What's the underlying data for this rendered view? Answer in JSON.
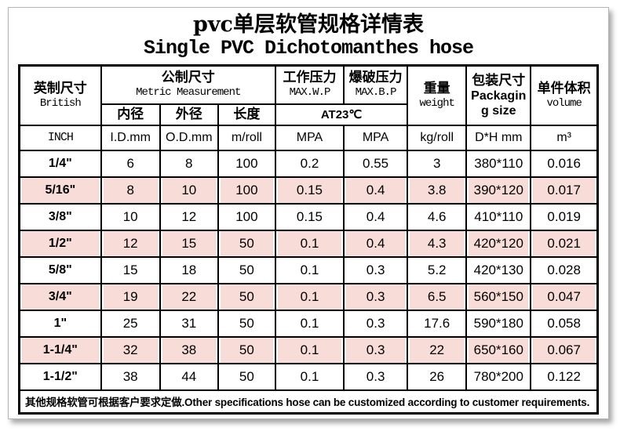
{
  "title": {
    "zh": "pvc单层软管规格详情表",
    "en": "Single PVC Dichotomanthes hose"
  },
  "table": {
    "header": {
      "british": {
        "zh": "英制尺寸",
        "en": "British"
      },
      "metric": {
        "zh": "公制尺寸",
        "en": "Metric Measurement"
      },
      "metric_sub": [
        "内径",
        "外径",
        "长度"
      ],
      "working_pressure": {
        "zh": "工作压力",
        "en": "MAX.W.P"
      },
      "burst_pressure": {
        "zh": "爆破压力",
        "en": "MAX.B.P"
      },
      "at23": "AT23℃",
      "weight": {
        "zh": "重量",
        "en": "weight"
      },
      "packaging": {
        "zh": "包装尺寸",
        "en": "Packaging size"
      },
      "volume": {
        "zh": "单件体积",
        "en": "volume"
      }
    },
    "units": [
      "INCH",
      "I.D.mm",
      "O.D.mm",
      "m/roll",
      "MPA",
      "MPA",
      "kg/roll",
      "D*H mm",
      "m³"
    ],
    "rows": [
      {
        "inch": "1/4\"",
        "id": "6",
        "od": "8",
        "length": "100",
        "wp": "0.2",
        "bp": "0.55",
        "weight": "3",
        "pkg": "380*110",
        "vol": "0.016"
      },
      {
        "inch": "5/16\"",
        "id": "8",
        "od": "10",
        "length": "100",
        "wp": "0.15",
        "bp": "0.4",
        "weight": "3.8",
        "pkg": "390*120",
        "vol": "0.017"
      },
      {
        "inch": "3/8\"",
        "id": "10",
        "od": "12",
        "length": "100",
        "wp": "0.15",
        "bp": "0.4",
        "weight": "4.6",
        "pkg": "410*110",
        "vol": "0.019"
      },
      {
        "inch": "1/2\"",
        "id": "12",
        "od": "15",
        "length": "50",
        "wp": "0.1",
        "bp": "0.4",
        "weight": "4.3",
        "pkg": "420*120",
        "vol": "0.021"
      },
      {
        "inch": "5/8\"",
        "id": "15",
        "od": "18",
        "length": "50",
        "wp": "0.1",
        "bp": "0.3",
        "weight": "5.2",
        "pkg": "420*130",
        "vol": "0.028"
      },
      {
        "inch": "3/4\"",
        "id": "19",
        "od": "22",
        "length": "50",
        "wp": "0.1",
        "bp": "0.3",
        "weight": "6.5",
        "pkg": "560*150",
        "vol": "0.047"
      },
      {
        "inch": "1\"",
        "id": "25",
        "od": "31",
        "length": "50",
        "wp": "0.1",
        "bp": "0.3",
        "weight": "17.6",
        "pkg": "590*180",
        "vol": "0.058"
      },
      {
        "inch": "1-1/4\"",
        "id": "32",
        "od": "38",
        "length": "50",
        "wp": "0.1",
        "bp": "0.3",
        "weight": "22",
        "pkg": "650*160",
        "vol": "0.067"
      },
      {
        "inch": "1-1/2\"",
        "id": "38",
        "od": "44",
        "length": "50",
        "wp": "0.1",
        "bp": "0.3",
        "weight": "26",
        "pkg": "780*200",
        "vol": "0.122"
      }
    ]
  },
  "footer": {
    "text": "其他规格软管可根据客户要求定做.Other specifications hose can be customized according to customer requirements."
  },
  "colors": {
    "row_stripe": "#f8dcd8",
    "border": "#000000"
  }
}
